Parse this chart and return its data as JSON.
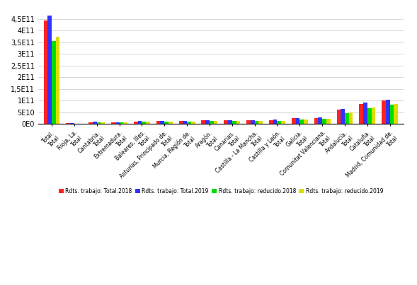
{
  "categories": [
    "Total.\nTotal",
    "Rioja, La.\nTotal",
    "Cantabria.\nTotal",
    "Extremadura.\nTotal",
    "Baleares, Illes.\nTotal",
    "Asturias, Principado de.\nTotal",
    "Murcia, Región de.\nTotal",
    "Aragón.\nTotal",
    "Canarias.\nTotal",
    "Castilla - La Mancha.\nTotal",
    "Castilla y León.\nTotal",
    "Galicia.\nTotal",
    "Comunitat Valenciana.\nTotal",
    "Andalucía.\nTotal",
    "Cataluña.\nTotal",
    "Madrid, Comunidad de.\nTotal"
  ],
  "series": {
    "Rdts. trabajo: Total.2018": [
      442000000000.0,
      3500000000.0,
      8000000000.0,
      8000000000.0,
      11500000000.0,
      12000000000.0,
      13000000000.0,
      15500000000.0,
      16500000000.0,
      16000000000.0,
      17500000000.0,
      25000000000.0,
      27000000000.0,
      62000000000.0,
      87000000000.0,
      100000000000.0
    ],
    "Rdts. trabajo: Total.2019": [
      465000000000.0,
      3800000000.0,
      9000000000.0,
      8500000000.0,
      12500000000.0,
      13000000000.0,
      14000000000.0,
      16500000000.0,
      17500000000.0,
      17000000000.0,
      18500000000.0,
      26000000000.0,
      28500000000.0,
      64000000000.0,
      93000000000.0,
      103000000000.0
    ],
    "Rdts. trabajo: reducido.2018": [
      355000000000.0,
      2500000000.0,
      6500000000.0,
      6000000000.0,
      9000000000.0,
      9500000000.0,
      10000000000.0,
      12500000000.0,
      13000000000.0,
      12500000000.0,
      13500000000.0,
      19000000000.0,
      22000000000.0,
      48000000000.0,
      68000000000.0,
      82000000000.0
    ],
    "Rdts. trabajo: reducido.2019": [
      372000000000.0,
      2800000000.0,
      7000000000.0,
      6500000000.0,
      9500000000.0,
      10000000000.0,
      10500000000.0,
      13500000000.0,
      14000000000.0,
      13500000000.0,
      14500000000.0,
      20000000000.0,
      23500000000.0,
      50000000000.0,
      71000000000.0,
      85000000000.0
    ]
  },
  "colors": [
    "#ff2222",
    "#3333ff",
    "#00dd00",
    "#dddd00"
  ],
  "legend_labels": [
    "Rdts. trabajo: Total.2018",
    "Rdts. trabajo: Total.2019",
    "Rdts. trabajo: reducido.2018",
    "Rdts. trabajo: reducido.2019"
  ],
  "yticks": [
    0,
    50000000000.0,
    100000000000.0,
    150000000000.0,
    200000000000.0,
    250000000000.0,
    300000000000.0,
    350000000000.0,
    400000000000.0,
    450000000000.0
  ],
  "ytick_labels": [
    "0E0",
    "5E10",
    "1E11",
    "1,5E11",
    "2E11",
    "2,5E11",
    "3E11",
    "3,5E11",
    "4E11",
    "4,5E11"
  ],
  "background_color": "#ffffff",
  "grid_color": "#c8c8c8",
  "bar_width": 0.18,
  "figsize": [
    5.89,
    4.03
  ],
  "dpi": 100
}
